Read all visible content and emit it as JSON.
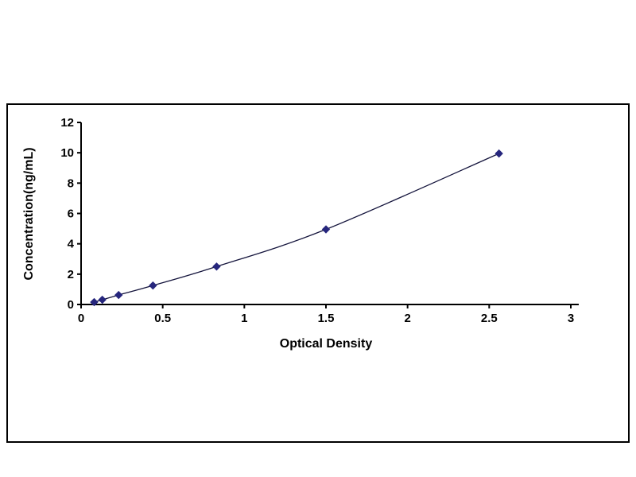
{
  "chart_data": {
    "type": "line",
    "title": "",
    "xlabel": "Optical Density",
    "ylabel": "Concentration(ng/mL)",
    "x": [
      0.08,
      0.13,
      0.23,
      0.44,
      0.83,
      1.5,
      2.56
    ],
    "y": [
      0.156,
      0.312,
      0.625,
      1.25,
      2.5,
      4.95,
      9.95
    ],
    "xlim": [
      0,
      3
    ],
    "ylim": [
      0,
      12
    ],
    "x_ticks": {
      "values": [
        0,
        0.5,
        1,
        1.5,
        2,
        2.5,
        3
      ],
      "labels": [
        "0",
        "0.5",
        "1",
        "1.5",
        "2",
        "2.5",
        "3"
      ]
    },
    "y_ticks": {
      "values": [
        0,
        2,
        4,
        6,
        8,
        10,
        12
      ],
      "labels": [
        "0",
        "2",
        "4",
        "6",
        "8",
        "10",
        "12"
      ]
    },
    "grid": false,
    "legend": "none",
    "marker": "diamond",
    "colors": {
      "line": "#14143c",
      "marker": "#26267d",
      "axis": "#000000",
      "frame_border": "#000000",
      "background": "#ffffff"
    }
  }
}
